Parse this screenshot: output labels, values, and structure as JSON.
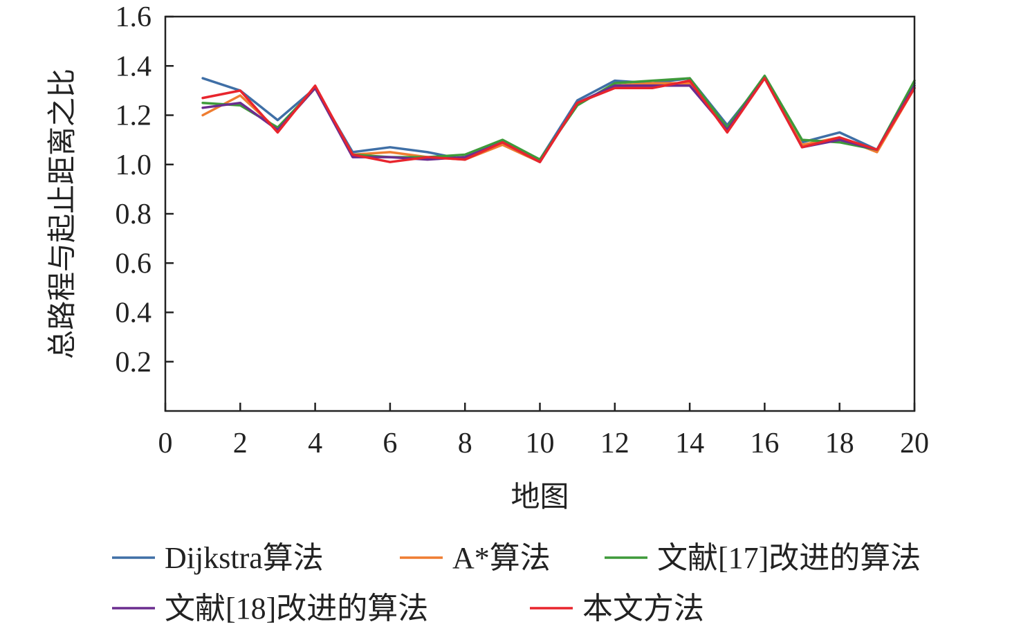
{
  "chart_data": {
    "type": "line",
    "xlabel": "地图",
    "ylabel": "总路程与起止距离之比",
    "xlim": [
      0,
      20
    ],
    "ylim": [
      0,
      1.6
    ],
    "x_ticks": [
      0,
      2,
      4,
      6,
      8,
      10,
      12,
      14,
      16,
      18,
      20
    ],
    "y_ticks": [
      0.2,
      0.4,
      0.6,
      0.8,
      1.0,
      1.2,
      1.4,
      1.6
    ],
    "y_tick_labels": [
      "0.2",
      "0.4",
      "0.6",
      "0.8",
      "1.0",
      "1.2",
      "1.4",
      "1.6"
    ],
    "x": [
      1,
      2,
      3,
      4,
      5,
      6,
      7,
      8,
      9,
      10,
      11,
      12,
      13,
      14,
      15,
      16,
      17,
      18,
      19,
      20
    ],
    "legend_position": "bottom",
    "grid": false,
    "series": [
      {
        "name": "Dijkstra算法",
        "color": "#3f6fa6",
        "values": [
          1.35,
          1.3,
          1.18,
          1.31,
          1.05,
          1.07,
          1.05,
          1.02,
          1.09,
          1.02,
          1.26,
          1.34,
          1.33,
          1.35,
          1.16,
          1.35,
          1.09,
          1.13,
          1.06,
          1.33
        ]
      },
      {
        "name": "A*算法",
        "color": "#ef7d31",
        "values": [
          1.2,
          1.28,
          1.14,
          1.31,
          1.04,
          1.05,
          1.03,
          1.02,
          1.08,
          1.01,
          1.25,
          1.32,
          1.33,
          1.33,
          1.14,
          1.35,
          1.08,
          1.11,
          1.05,
          1.31
        ]
      },
      {
        "name": "文献[17]改进的算法",
        "color": "#3e9a3a",
        "values": [
          1.25,
          1.24,
          1.15,
          1.31,
          1.04,
          1.03,
          1.03,
          1.04,
          1.1,
          1.02,
          1.24,
          1.33,
          1.34,
          1.35,
          1.15,
          1.36,
          1.1,
          1.09,
          1.06,
          1.34
        ]
      },
      {
        "name": "文献[18]改进的算法",
        "color": "#6b2d8f",
        "values": [
          1.23,
          1.25,
          1.14,
          1.31,
          1.03,
          1.03,
          1.02,
          1.03,
          1.09,
          1.01,
          1.25,
          1.32,
          1.32,
          1.32,
          1.14,
          1.35,
          1.07,
          1.1,
          1.06,
          1.32
        ]
      },
      {
        "name": "本文方法",
        "color": "#e8252d",
        "values": [
          1.27,
          1.3,
          1.13,
          1.32,
          1.04,
          1.01,
          1.03,
          1.02,
          1.09,
          1.01,
          1.25,
          1.31,
          1.31,
          1.34,
          1.13,
          1.35,
          1.07,
          1.11,
          1.06,
          1.31
        ]
      }
    ]
  }
}
